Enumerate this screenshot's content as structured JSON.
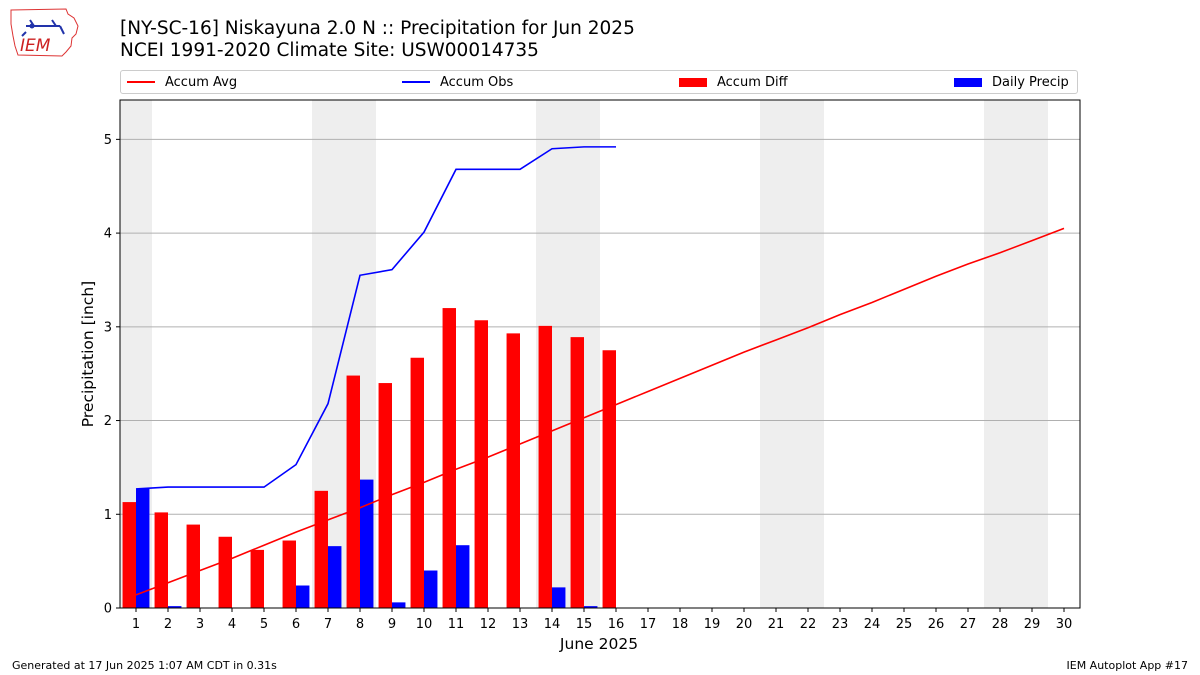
{
  "logo": {
    "text": "IEM"
  },
  "header": {
    "title_line1": "[NY-SC-16] Niskayuna 2.0 N :: Precipitation for Jun 2025",
    "title_line2": "NCEI 1991-2020 Climate Site: USW00014735"
  },
  "legend": {
    "accum_avg": "Accum Avg",
    "accum_obs": "Accum Obs",
    "accum_diff": "Accum Diff",
    "daily_precip": "Daily Precip"
  },
  "colors": {
    "avg": "#ff0000",
    "obs": "#0000ff",
    "diff": "#ff0000",
    "daily": "#0000ff",
    "weekend": "#eeeeee",
    "grid": "#b0b0b0"
  },
  "footer": {
    "generated": "Generated at 17 Jun 2025 1:07 AM CDT in 0.31s",
    "app": "IEM Autoplot App #17"
  },
  "chart_data": {
    "type": "bar",
    "xlabel": "June 2025",
    "ylabel": "Precipitation [inch]",
    "ylim": [
      0,
      5.42
    ],
    "xlim": [
      0.5,
      30.5
    ],
    "yticks": [
      0,
      1,
      2,
      3,
      4,
      5
    ],
    "days": [
      1,
      2,
      3,
      4,
      5,
      6,
      7,
      8,
      9,
      10,
      11,
      12,
      13,
      14,
      15,
      16,
      17,
      18,
      19,
      20,
      21,
      22,
      23,
      24,
      25,
      26,
      27,
      28,
      29,
      30
    ],
    "weekend_spans": [
      [
        0.5,
        1.5
      ],
      [
        6.5,
        8.5
      ],
      [
        13.5,
        15.5
      ],
      [
        20.5,
        22.5
      ],
      [
        27.5,
        29.5
      ]
    ],
    "grid": "horizontal",
    "series": [
      {
        "name": "Accum Avg",
        "kind": "line",
        "x": [
          1,
          2,
          3,
          4,
          5,
          6,
          7,
          8,
          9,
          10,
          11,
          12,
          13,
          14,
          15,
          16,
          17,
          18,
          19,
          20,
          21,
          22,
          23,
          24,
          25,
          26,
          27,
          28,
          29,
          30
        ],
        "values": [
          0.14,
          0.27,
          0.4,
          0.53,
          0.67,
          0.81,
          0.94,
          1.07,
          1.21,
          1.34,
          1.48,
          1.61,
          1.75,
          1.89,
          2.03,
          2.17,
          2.31,
          2.45,
          2.59,
          2.73,
          2.86,
          2.99,
          3.13,
          3.26,
          3.4,
          3.54,
          3.67,
          3.79,
          3.92,
          4.05
        ]
      },
      {
        "name": "Accum Obs",
        "kind": "line",
        "x": [
          1,
          2,
          3,
          4,
          5,
          6,
          7,
          8,
          9,
          10,
          11,
          12,
          13,
          14,
          15,
          16
        ],
        "values": [
          1.27,
          1.29,
          1.29,
          1.29,
          1.29,
          1.53,
          2.18,
          3.55,
          3.61,
          4.01,
          4.68,
          4.68,
          4.68,
          4.9,
          4.92,
          4.92
        ]
      },
      {
        "name": "Accum Diff",
        "kind": "bar",
        "x": [
          1,
          2,
          3,
          4,
          5,
          6,
          7,
          8,
          9,
          10,
          11,
          12,
          13,
          14,
          15,
          16
        ],
        "values": [
          1.13,
          1.02,
          0.89,
          0.76,
          0.62,
          0.72,
          1.25,
          2.48,
          2.4,
          2.67,
          3.2,
          3.07,
          2.93,
          3.01,
          2.89,
          2.75
        ]
      },
      {
        "name": "Daily Precip",
        "kind": "bar",
        "x": [
          1,
          2,
          3,
          4,
          5,
          6,
          7,
          8,
          9,
          10,
          11,
          12,
          13,
          14,
          15,
          16
        ],
        "values": [
          1.27,
          0.02,
          0,
          0,
          0,
          0.24,
          0.66,
          1.37,
          0.06,
          0.4,
          0.67,
          0,
          0,
          0.22,
          0.02,
          0
        ]
      }
    ]
  }
}
